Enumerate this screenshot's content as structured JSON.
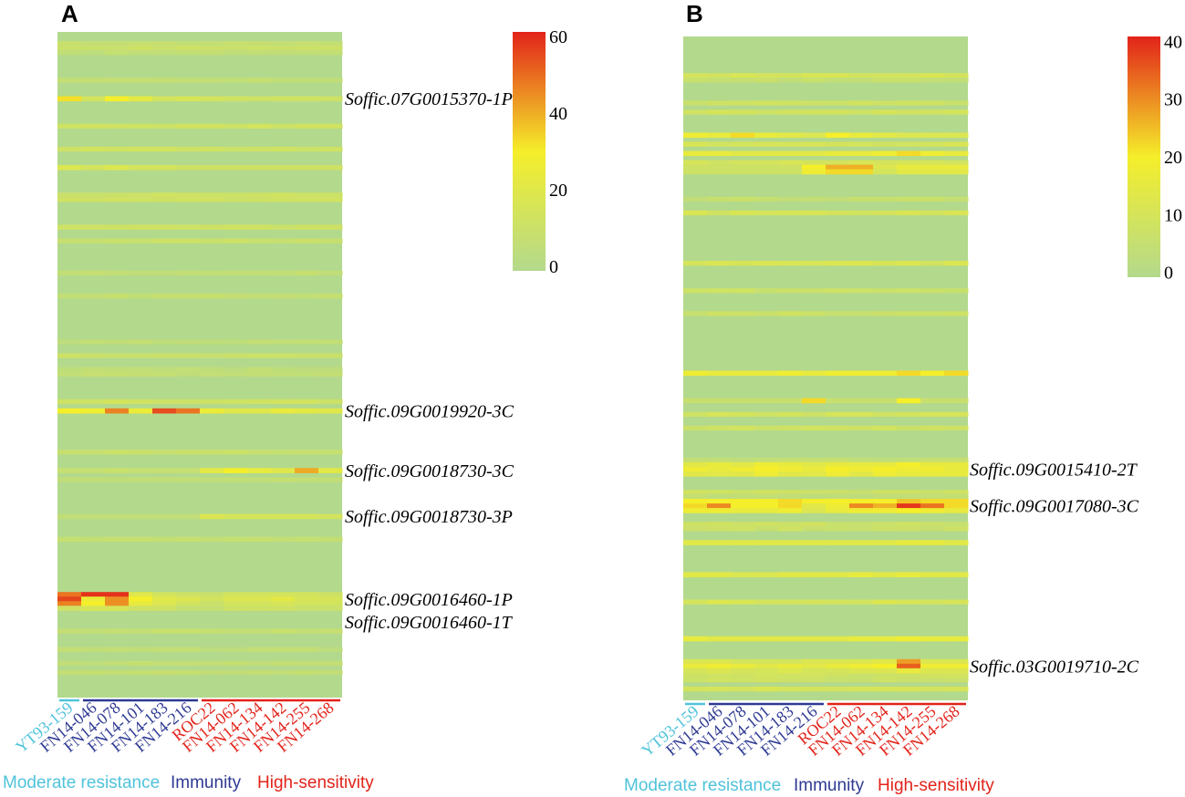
{
  "chart_data": [
    {
      "panel": "A",
      "type": "heatmap",
      "colorscale": [
        "#b3d98c",
        "#f5ee2a",
        "#e2231a"
      ],
      "colorbar": {
        "min": 0,
        "max": 60,
        "ticks": [
          "60",
          "40",
          "20",
          "0"
        ],
        "tick_values": [
          60,
          40,
          20,
          0
        ]
      },
      "n_rows": 145,
      "samples": [
        {
          "label": "YT93-159",
          "group": 0
        },
        {
          "label": "FN14-046",
          "group": 1
        },
        {
          "label": "FN14-078",
          "group": 1
        },
        {
          "label": "FN14-101",
          "group": 1
        },
        {
          "label": "FN14-183",
          "group": 1
        },
        {
          "label": "FN14-216",
          "group": 1
        },
        {
          "label": "ROC22",
          "group": 2
        },
        {
          "label": "FN14-062",
          "group": 2
        },
        {
          "label": "FN14-134",
          "group": 2
        },
        {
          "label": "FN14-142",
          "group": 2
        },
        {
          "label": "FN14-255",
          "group": 2
        },
        {
          "label": "FN14-268",
          "group": 2
        }
      ],
      "groups": [
        {
          "label": "Moderate resistance",
          "color": "#4fc3db"
        },
        {
          "label": "Immunity",
          "color": "#2e3a93"
        },
        {
          "label": "High-sensitivity",
          "color": "#e2231a"
        }
      ],
      "row_labels": [
        {
          "row": 14,
          "label": "Soffic.07G0015370-1P"
        },
        {
          "row": 82,
          "label": "Soffic.09G0019920-3C"
        },
        {
          "row": 95,
          "label": "Soffic.09G0018730-3C"
        },
        {
          "row": 105,
          "label": "Soffic.09G0018730-3P"
        },
        {
          "row": 123,
          "label": "Soffic.09G0016460-1P"
        },
        {
          "row": 124,
          "label": "Soffic.09G0016460-1T"
        }
      ],
      "highlight_rows": [
        {
          "row": 14,
          "values": [
            32,
            14,
            30,
            22,
            14,
            16,
            14,
            13,
            12,
            13,
            13,
            12
          ]
        },
        {
          "row": 29,
          "values": [
            18,
            14,
            18,
            14,
            14,
            12,
            12,
            12,
            12,
            12,
            12,
            12
          ]
        },
        {
          "row": 82,
          "values": [
            30,
            28,
            46,
            26,
            54,
            48,
            26,
            20,
            20,
            24,
            22,
            20
          ]
        },
        {
          "row": 95,
          "values": [
            8,
            8,
            10,
            8,
            8,
            8,
            22,
            30,
            24,
            20,
            40,
            22
          ]
        },
        {
          "row": 105,
          "values": [
            6,
            6,
            6,
            6,
            6,
            6,
            18,
            16,
            16,
            16,
            16,
            14
          ]
        },
        {
          "row": 122,
          "values": [
            48,
            58,
            58,
            20,
            14,
            12,
            10,
            14,
            14,
            14,
            14,
            12
          ]
        },
        {
          "row": 123,
          "values": [
            55,
            26,
            44,
            30,
            20,
            18,
            14,
            18,
            18,
            22,
            16,
            16
          ]
        },
        {
          "row": 124,
          "values": [
            46,
            30,
            44,
            24,
            18,
            14,
            10,
            14,
            14,
            16,
            14,
            14
          ]
        },
        {
          "row": 125,
          "values": [
            12,
            16,
            16,
            12,
            12,
            8,
            8,
            12,
            12,
            12,
            10,
            10
          ]
        }
      ]
    },
    {
      "panel": "B",
      "type": "heatmap",
      "colorscale": [
        "#b3d98c",
        "#f5ee2a",
        "#e2231a"
      ],
      "colorbar": {
        "min": 0,
        "max": 40,
        "ticks": [
          "40",
          "30",
          "20",
          "10",
          "0"
        ],
        "tick_values": [
          40,
          30,
          20,
          10,
          0
        ]
      },
      "n_rows": 145,
      "samples": [
        {
          "label": "YT93-159",
          "group": 0
        },
        {
          "label": "FN14-046",
          "group": 1
        },
        {
          "label": "FN14-078",
          "group": 1
        },
        {
          "label": "FN14-101",
          "group": 1
        },
        {
          "label": "FN14-183",
          "group": 1
        },
        {
          "label": "FN14-216",
          "group": 1
        },
        {
          "label": "ROC22",
          "group": 2
        },
        {
          "label": "FN14-062",
          "group": 2
        },
        {
          "label": "FN14-134",
          "group": 2
        },
        {
          "label": "FN14-142",
          "group": 2
        },
        {
          "label": "FN14-255",
          "group": 2
        },
        {
          "label": "FN14-268",
          "group": 2
        }
      ],
      "groups": [
        {
          "label": "Moderate resistance",
          "color": "#4fc3db"
        },
        {
          "label": "Immunity",
          "color": "#2e3a93"
        },
        {
          "label": "High-sensitivity",
          "color": "#e2231a"
        }
      ],
      "row_labels": [
        {
          "row": 94,
          "label": "Soffic.09G0015410-2T"
        },
        {
          "row": 102,
          "label": "Soffic.09G0017080-3C"
        },
        {
          "row": 137,
          "label": "Soffic.03G0019710-2C"
        }
      ],
      "highlight_rows": [
        {
          "row": 21,
          "values": [
            18,
            16,
            22,
            16,
            14,
            12,
            20,
            16,
            14,
            12,
            12,
            12
          ]
        },
        {
          "row": 25,
          "values": [
            16,
            16,
            14,
            14,
            14,
            14,
            16,
            16,
            18,
            22,
            18,
            16
          ]
        },
        {
          "row": 28,
          "values": [
            8,
            8,
            8,
            8,
            8,
            20,
            26,
            26,
            12,
            16,
            16,
            16
          ]
        },
        {
          "row": 29,
          "values": [
            8,
            8,
            8,
            8,
            8,
            18,
            22,
            22,
            10,
            14,
            14,
            14
          ]
        },
        {
          "row": 73,
          "values": [
            18,
            16,
            16,
            16,
            18,
            16,
            18,
            18,
            18,
            22,
            20,
            22
          ]
        },
        {
          "row": 79,
          "values": [
            6,
            6,
            6,
            6,
            6,
            22,
            6,
            6,
            6,
            20,
            6,
            6
          ]
        },
        {
          "row": 93,
          "values": [
            14,
            16,
            14,
            18,
            16,
            14,
            16,
            16,
            16,
            20,
            16,
            16
          ]
        },
        {
          "row": 94,
          "values": [
            18,
            16,
            18,
            20,
            18,
            16,
            20,
            18,
            20,
            18,
            18,
            16
          ]
        },
        {
          "row": 95,
          "values": [
            14,
            14,
            14,
            18,
            14,
            14,
            18,
            14,
            18,
            16,
            16,
            16
          ]
        },
        {
          "row": 101,
          "values": [
            20,
            20,
            20,
            20,
            22,
            20,
            20,
            20,
            20,
            24,
            22,
            22
          ]
        },
        {
          "row": 102,
          "values": [
            22,
            30,
            20,
            20,
            22,
            14,
            18,
            30,
            26,
            38,
            32,
            22
          ]
        },
        {
          "row": 103,
          "values": [
            18,
            18,
            16,
            16,
            18,
            12,
            16,
            18,
            18,
            20,
            18,
            16
          ]
        },
        {
          "row": 110,
          "values": [
            14,
            14,
            14,
            14,
            14,
            14,
            14,
            14,
            14,
            16,
            16,
            14
          ]
        },
        {
          "row": 117,
          "values": [
            14,
            14,
            12,
            12,
            14,
            14,
            14,
            16,
            14,
            16,
            14,
            14
          ]
        },
        {
          "row": 131,
          "values": [
            16,
            14,
            14,
            14,
            14,
            14,
            14,
            16,
            16,
            18,
            16,
            16
          ]
        },
        {
          "row": 136,
          "values": [
            12,
            12,
            10,
            10,
            10,
            12,
            12,
            12,
            14,
            28,
            12,
            12
          ]
        },
        {
          "row": 137,
          "values": [
            16,
            18,
            16,
            14,
            16,
            14,
            16,
            18,
            20,
            34,
            18,
            18
          ]
        },
        {
          "row": 138,
          "values": [
            10,
            12,
            10,
            10,
            12,
            10,
            10,
            12,
            12,
            16,
            12,
            12
          ]
        }
      ]
    }
  ]
}
